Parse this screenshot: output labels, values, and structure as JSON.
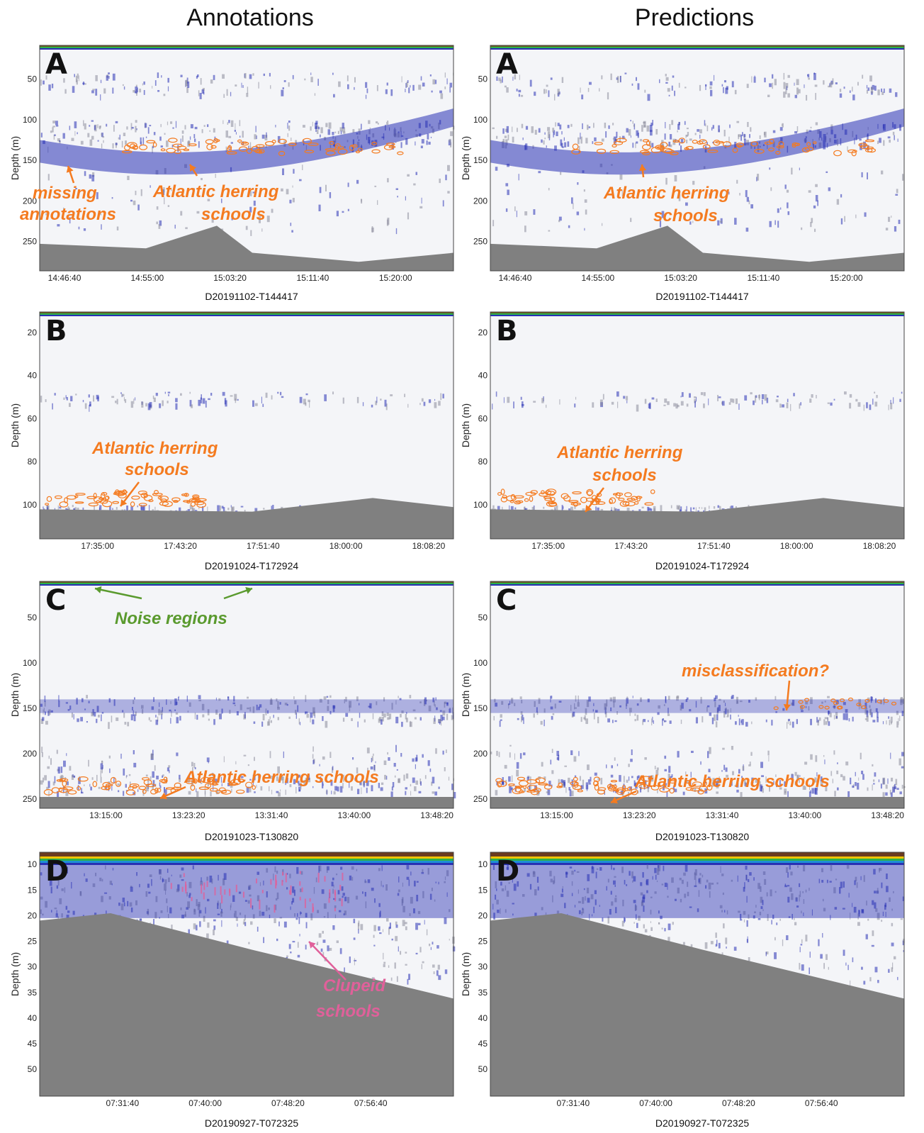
{
  "headers": {
    "left": "Annotations",
    "right": "Predictions"
  },
  "y_axis_label": "Depth (m)",
  "colors": {
    "annotation_orange": "#f47b20",
    "noise_green": "#5a9a2e",
    "clupeid_pink": "#e0609a",
    "seafloor": "#808080",
    "echo_blue": "#2830b4"
  },
  "rows": [
    {
      "letter": "A",
      "file": "D20191102-T144417",
      "y_ticks": [
        "50",
        "100",
        "150",
        "200",
        "250"
      ],
      "x_ticks": [
        "14:46:40",
        "14:55:00",
        "15:03:20",
        "15:11:40",
        "15:20:00"
      ],
      "left_annotations": [
        {
          "text": "missing",
          "color": "orange"
        },
        {
          "text": "annotations",
          "color": "orange"
        },
        {
          "text": "Atlantic herring",
          "color": "orange"
        },
        {
          "text": "schools",
          "color": "orange"
        }
      ],
      "right_annotations": [
        {
          "text": "Atlantic herring",
          "color": "orange"
        },
        {
          "text": "schools",
          "color": "orange"
        }
      ]
    },
    {
      "letter": "B",
      "file": "D20191024-T172924",
      "y_ticks": [
        "20",
        "40",
        "60",
        "80",
        "100"
      ],
      "x_ticks": [
        "17:35:00",
        "17:43:20",
        "17:51:40",
        "18:00:00",
        "18:08:20"
      ],
      "left_annotations": [
        {
          "text": "Atlantic herring",
          "color": "orange"
        },
        {
          "text": "schools",
          "color": "orange"
        }
      ],
      "right_annotations": [
        {
          "text": "Atlantic herring",
          "color": "orange"
        },
        {
          "text": "schools",
          "color": "orange"
        }
      ]
    },
    {
      "letter": "C",
      "file": "D20191023-T130820",
      "y_ticks": [
        "50",
        "100",
        "150",
        "200",
        "250"
      ],
      "x_ticks": [
        "13:15:00",
        "13:23:20",
        "13:31:40",
        "13:40:00",
        "13:48:20"
      ],
      "left_annotations": [
        {
          "text": "Noise regions",
          "color": "green"
        },
        {
          "text": "Atlantic herring schools",
          "color": "orange"
        }
      ],
      "right_annotations": [
        {
          "text": "misclassification?",
          "color": "orange"
        },
        {
          "text": "Atlantic herring schools",
          "color": "orange"
        }
      ]
    },
    {
      "letter": "D",
      "file": "D20190927-T072325",
      "y_ticks": [
        "10",
        "15",
        "20",
        "25",
        "30",
        "35",
        "40",
        "45",
        "50"
      ],
      "x_ticks": [
        "07:31:40",
        "07:40:00",
        "07:48:20",
        "07:56:40"
      ],
      "left_annotations": [
        {
          "text": "Clupeid",
          "color": "pink"
        },
        {
          "text": "schools",
          "color": "pink"
        }
      ],
      "right_annotations": []
    }
  ]
}
